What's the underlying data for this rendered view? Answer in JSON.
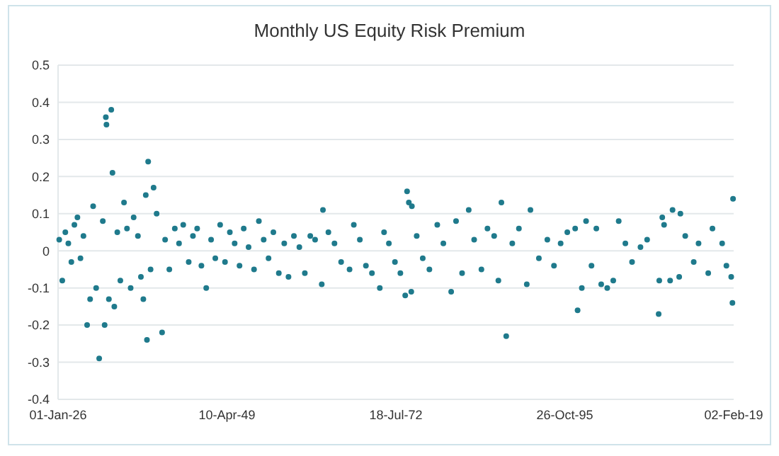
{
  "chart_data": {
    "type": "scatter",
    "title": "Monthly US Equity Risk Premium",
    "marker": "circle",
    "grid": "y",
    "xlim": [
      "1926-01-01",
      "2019-02-02"
    ],
    "xticks": [
      {
        "value": "1926-01-01",
        "label": "01-Jan-26"
      },
      {
        "value": "1949-04-10",
        "label": "10-Apr-49"
      },
      {
        "value": "1972-07-18",
        "label": "18-Jul-72"
      },
      {
        "value": "1995-10-26",
        "label": "26-Oct-95"
      },
      {
        "value": "2019-02-02",
        "label": "02-Feb-19"
      }
    ],
    "ylim": [
      -0.4,
      0.5
    ],
    "yticks": [
      -0.4,
      -0.3,
      -0.2,
      -0.1,
      0,
      0.1,
      0.2,
      0.3,
      0.4,
      0.5
    ],
    "series": [
      {
        "color": "#1f7a8c",
        "x": [
          "1926-03",
          "1926-08",
          "1927-01",
          "1927-06",
          "1927-11",
          "1928-04",
          "1928-09",
          "1929-02",
          "1929-07",
          "1930-01",
          "1930-06",
          "1930-11",
          "1931-04",
          "1931-09",
          "1932-03",
          "1932-06",
          "1932-08",
          "1932-09",
          "1933-01",
          "1933-05",
          "1933-07",
          "1933-10",
          "1934-03",
          "1934-08",
          "1935-02",
          "1935-07",
          "1936-01",
          "1936-06",
          "1937-01",
          "1937-06",
          "1937-10",
          "1938-02",
          "1938-04",
          "1938-06",
          "1938-10",
          "1939-03",
          "1939-08",
          "1940-05",
          "1940-10",
          "1941-05",
          "1942-02",
          "1942-09",
          "1943-04",
          "1944-01",
          "1944-08",
          "1945-03",
          "1945-10",
          "1946-06",
          "1947-02",
          "1947-09",
          "1948-05",
          "1949-01",
          "1949-09",
          "1950-05",
          "1951-01",
          "1951-08",
          "1952-04",
          "1953-01",
          "1953-09",
          "1954-05",
          "1955-01",
          "1955-09",
          "1956-06",
          "1957-03",
          "1957-10",
          "1958-07",
          "1959-04",
          "1960-01",
          "1960-10",
          "1961-06",
          "1962-05",
          "1962-07",
          "1963-04",
          "1964-02",
          "1965-01",
          "1966-03",
          "1966-10",
          "1967-08",
          "1968-06",
          "1969-04",
          "1970-05",
          "1970-12",
          "1971-08",
          "1972-06",
          "1973-03",
          "1973-11",
          "1974-02",
          "1974-05",
          "1974-09",
          "1974-10",
          "1975-06",
          "1976-04",
          "1977-03",
          "1978-04",
          "1979-02",
          "1980-03",
          "1980-11",
          "1981-09",
          "1982-08",
          "1983-05",
          "1984-05",
          "1985-03",
          "1986-02",
          "1986-09",
          "1987-02",
          "1987-10",
          "1988-08",
          "1989-07",
          "1990-08",
          "1991-02",
          "1992-04",
          "1993-06",
          "1994-05",
          "1995-04",
          "1996-03",
          "1997-04",
          "1997-08",
          "1998-03",
          "1998-10",
          "1999-07",
          "2000-03",
          "2000-11",
          "2001-09",
          "2002-07",
          "2003-04",
          "2004-03",
          "2005-02",
          "2006-04",
          "2007-03",
          "2008-10",
          "2008-11",
          "2009-04",
          "2009-07",
          "2010-05",
          "2010-09",
          "2011-08",
          "2011-10",
          "2012-06",
          "2013-08",
          "2014-04",
          "2015-08",
          "2016-03",
          "2017-07",
          "2018-02",
          "2018-10",
          "2018-12",
          "2019-01"
        ],
        "values": [
          0.03,
          -0.08,
          0.05,
          0.02,
          -0.03,
          0.07,
          0.09,
          -0.02,
          0.04,
          -0.2,
          -0.13,
          0.12,
          -0.1,
          -0.29,
          0.08,
          -0.2,
          0.36,
          0.34,
          -0.13,
          0.38,
          0.21,
          -0.15,
          0.05,
          -0.08,
          0.13,
          0.06,
          -0.1,
          0.09,
          0.04,
          -0.07,
          -0.13,
          0.15,
          -0.24,
          0.24,
          -0.05,
          0.17,
          0.1,
          -0.22,
          0.03,
          -0.05,
          0.06,
          0.02,
          0.07,
          -0.03,
          0.04,
          0.06,
          -0.04,
          -0.1,
          0.03,
          -0.02,
          0.07,
          -0.03,
          0.05,
          0.02,
          -0.04,
          0.06,
          0.01,
          -0.05,
          0.08,
          0.03,
          -0.02,
          0.05,
          -0.06,
          0.02,
          -0.07,
          0.04,
          0.01,
          -0.06,
          0.04,
          0.03,
          -0.09,
          0.11,
          0.05,
          0.02,
          -0.03,
          -0.05,
          0.07,
          0.03,
          -0.04,
          -0.06,
          -0.1,
          0.05,
          0.02,
          -0.03,
          -0.06,
          -0.12,
          0.16,
          0.13,
          -0.11,
          0.12,
          0.04,
          -0.02,
          -0.05,
          0.07,
          0.02,
          -0.11,
          0.08,
          -0.06,
          0.11,
          0.03,
          -0.05,
          0.06,
          0.04,
          -0.08,
          0.13,
          -0.23,
          0.02,
          0.06,
          -0.09,
          0.11,
          -0.02,
          0.03,
          -0.04,
          0.02,
          0.05,
          0.06,
          -0.16,
          -0.1,
          0.08,
          -0.04,
          0.06,
          -0.09,
          -0.1,
          -0.08,
          0.08,
          0.02,
          -0.03,
          0.01,
          0.03,
          -0.17,
          -0.08,
          0.09,
          0.07,
          -0.08,
          0.11,
          -0.07,
          0.1,
          0.04,
          -0.03,
          0.02,
          -0.06,
          0.06,
          0.02,
          -0.04,
          -0.07,
          -0.14,
          0.14
        ]
      }
    ]
  }
}
